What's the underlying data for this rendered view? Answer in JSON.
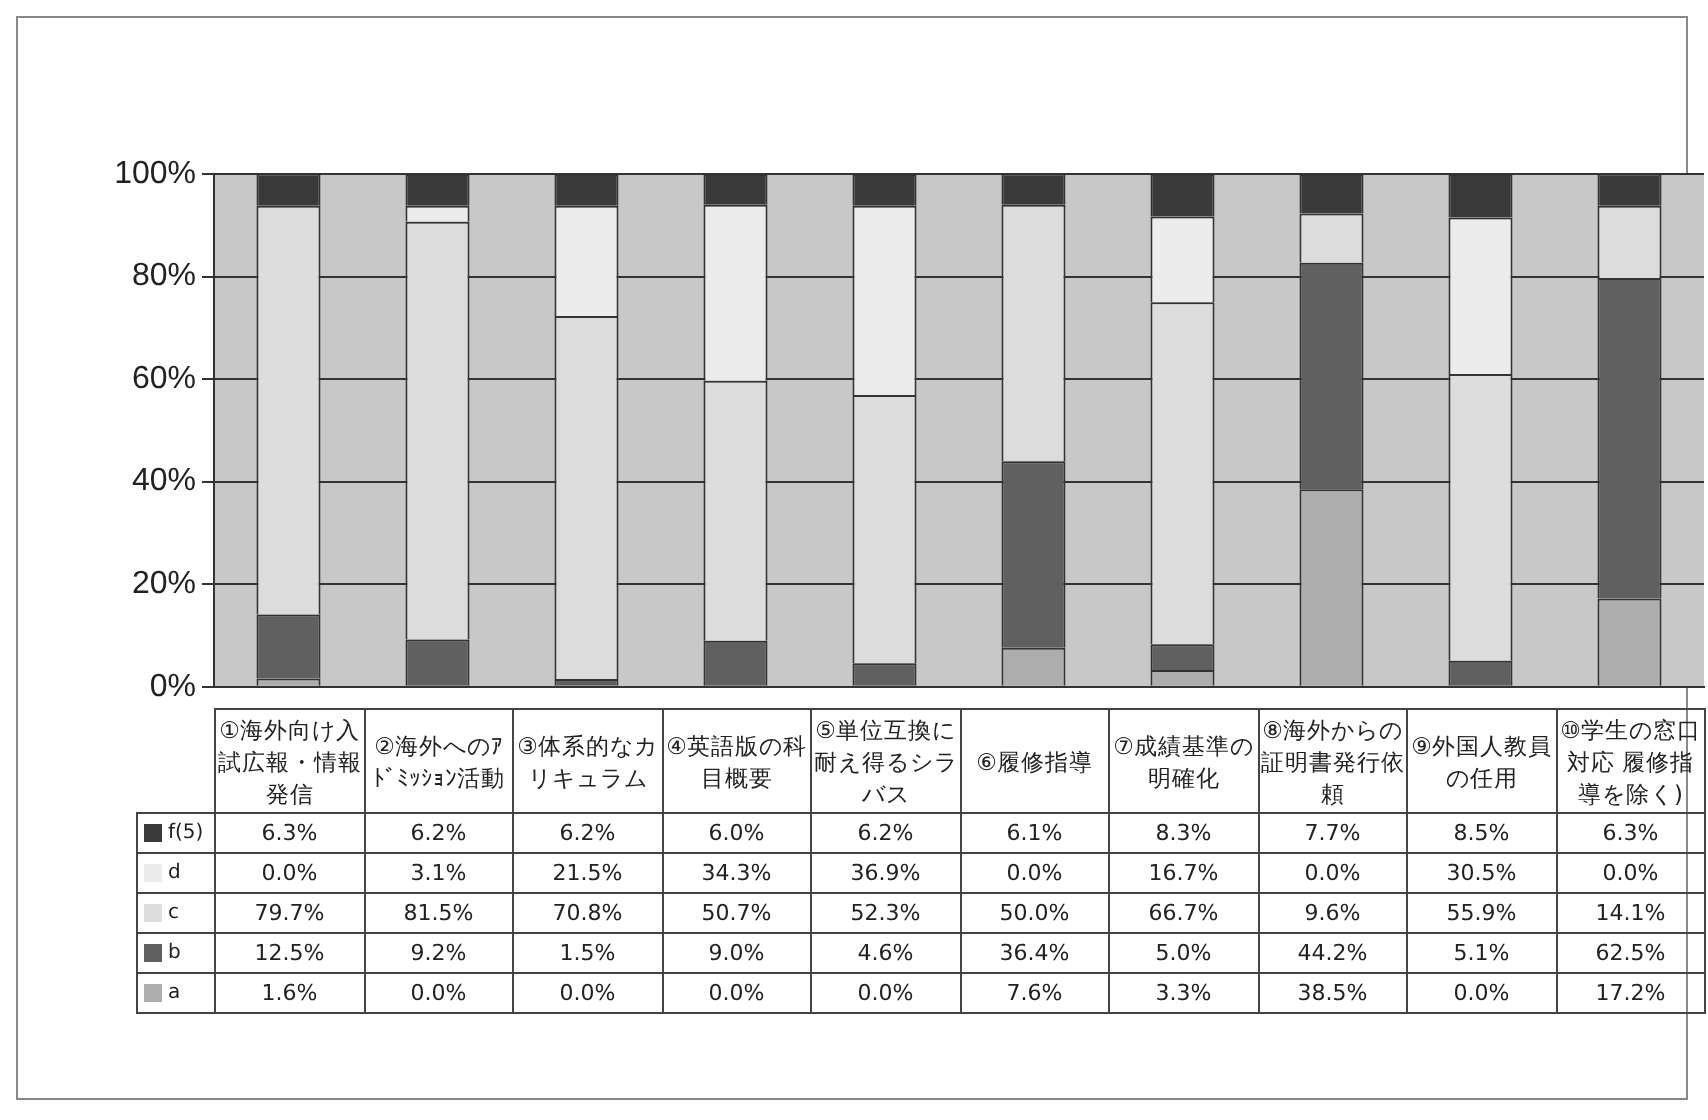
{
  "chart_data": {
    "type": "bar",
    "stacked": true,
    "categories": [
      "①海外向け入試広報・情報発信",
      "②海外へのｱﾄﾞﾐｯｼｮﾝ活動",
      "③体系的なカリキュラム",
      "④英語版の科目概要",
      "⑤単位互換に耐え得るシラバス",
      "⑥履修指導",
      "⑦成績基準の明確化",
      "⑧海外からの証明書発行依頼",
      "⑨外国人教員の任用",
      "⑩学生の窓口対応 履修指導を除く)"
    ],
    "series": [
      {
        "name": "a",
        "color": "#adadad",
        "values": [
          1.6,
          0,
          0,
          0,
          0,
          7.6,
          3.3,
          38.5,
          0,
          17.2
        ],
        "value_labels": [
          "1.6%",
          "0.0%",
          "0.0%",
          "0.0%",
          "0.0%",
          "7.6%",
          "3.3%",
          "38.5%",
          "0.0%",
          "17.2%"
        ]
      },
      {
        "name": "b",
        "color": "#606060",
        "values": [
          12.5,
          9.2,
          1.5,
          9,
          4.6,
          36.4,
          5,
          44.2,
          5.1,
          62.5
        ],
        "value_labels": [
          "12.5%",
          "9.2%",
          "1.5%",
          "9.0%",
          "4.6%",
          "36.4%",
          "5.0%",
          "44.2%",
          "5.1%",
          "62.5%"
        ]
      },
      {
        "name": "c",
        "color": "#dcdcdc",
        "values": [
          79.7,
          81.5,
          70.8,
          50.7,
          52.3,
          50,
          66.7,
          9.6,
          55.9,
          14.1
        ],
        "value_labels": [
          "79.7%",
          "81.5%",
          "70.8%",
          "50.7%",
          "52.3%",
          "50.0%",
          "66.7%",
          "9.6%",
          "55.9%",
          "14.1%"
        ]
      },
      {
        "name": "d",
        "color": "#ececec",
        "values": [
          0,
          3.1,
          21.5,
          34.3,
          36.9,
          0,
          16.7,
          0,
          30.5,
          0
        ],
        "value_labels": [
          "0.0%",
          "3.1%",
          "21.5%",
          "34.3%",
          "36.9%",
          "0.0%",
          "16.7%",
          "0.0%",
          "30.5%",
          "0.0%"
        ]
      },
      {
        "name": "f(5)",
        "color": "#3a3a3a",
        "values": [
          6.3,
          6.2,
          6.2,
          6,
          6.2,
          6.1,
          8.3,
          7.7,
          8.5,
          6.3
        ],
        "value_labels": [
          "6.3%",
          "6.2%",
          "6.2%",
          "6.0%",
          "6.2%",
          "6.1%",
          "8.3%",
          "7.7%",
          "8.5%",
          "6.3%"
        ]
      }
    ],
    "ylim": [
      0,
      100
    ],
    "yticks": [
      {
        "value": 0,
        "label": "0%"
      },
      {
        "value": 20,
        "label": "20%"
      },
      {
        "value": 40,
        "label": "40%"
      },
      {
        "value": 60,
        "label": "60%"
      },
      {
        "value": 80,
        "label": "80%"
      },
      {
        "value": 100,
        "label": "100%"
      }
    ],
    "grid": "y",
    "legend": "bottom"
  }
}
